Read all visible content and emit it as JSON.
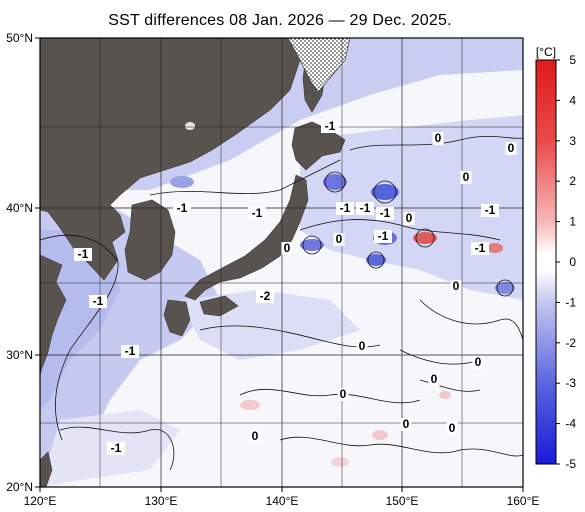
{
  "title": "SST differences 08 Jan. 2026 — 29 Dec. 2025.",
  "axes": {
    "lon_labels": [
      "120°E",
      "130°E",
      "140°E",
      "150°E",
      "160°E"
    ],
    "lat_labels": [
      "50°N",
      "40°N",
      "30°N",
      "20°N"
    ]
  },
  "colorbar": {
    "unit": "[°C]",
    "ticks": [
      "5",
      "4",
      "3",
      "2",
      "1",
      "0",
      "-1",
      "-2",
      "-3",
      "-4",
      "-5"
    ]
  },
  "contour_labels": {
    "labels": [
      "-1",
      "-1",
      "-1",
      "-1",
      "-1",
      "-1",
      "-2",
      "-1",
      "-1",
      "-1",
      "-1",
      "-1",
      "-1",
      "-1",
      "0",
      "0",
      "0",
      "0",
      "0",
      "0",
      "0",
      "0",
      "0",
      "0",
      "0",
      "0",
      "0",
      "0"
    ]
  },
  "colors": {
    "land": "#595350",
    "zero": "#ffffff",
    "cool_light": "#cfd3f3",
    "cool_mid": "#a7aee8",
    "cool_strong": "#2b3ad8",
    "warm_light": "#f4cfd1",
    "warm_strong": "#e02020"
  }
}
